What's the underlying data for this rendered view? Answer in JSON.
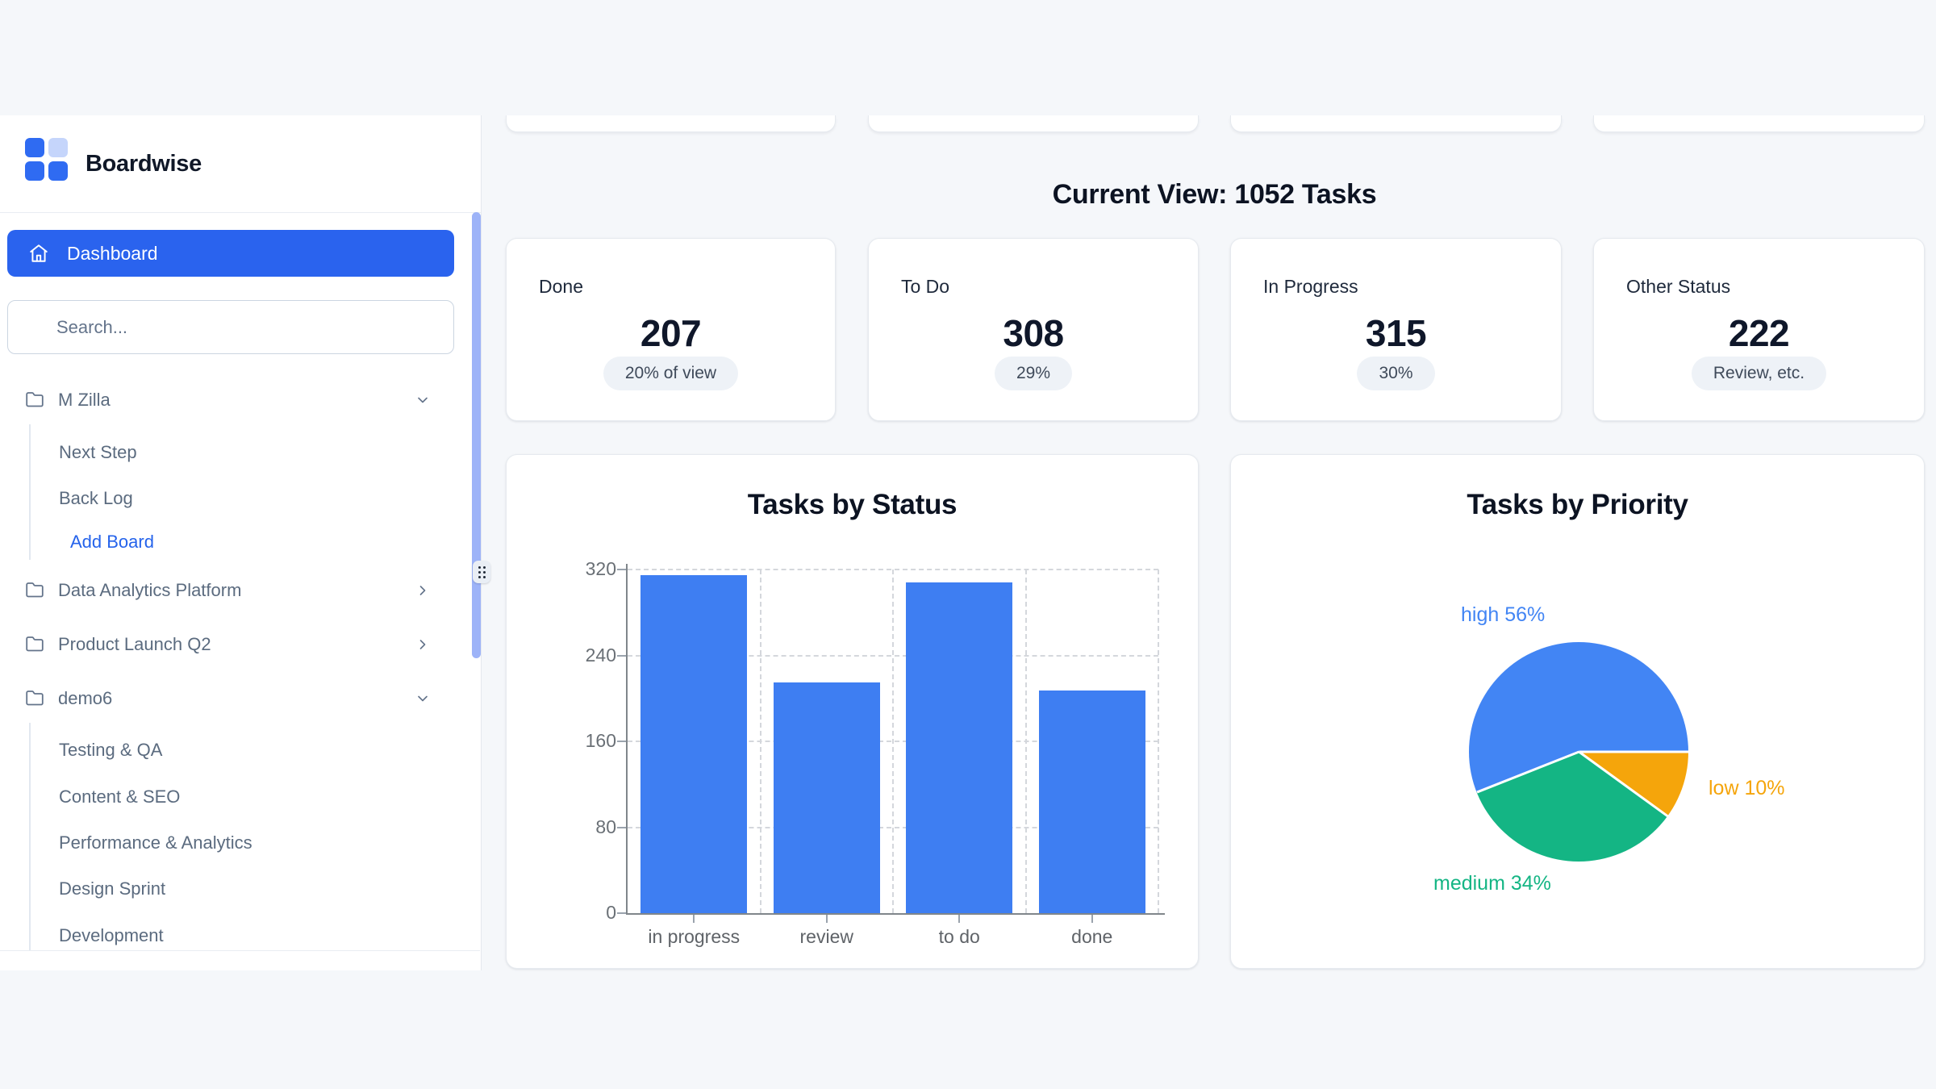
{
  "app": {
    "name": "Boardwise"
  },
  "colors": {
    "brand_blue": "#2a63ee",
    "link_blue": "#2563eb",
    "scrollbar": "#9db3f8",
    "bar_blue": "#3e7ef2",
    "pie_blue": "#4285f4",
    "pie_orange": "#f5a50b",
    "pie_green": "#14b584"
  },
  "sidebar": {
    "dashboard_label": "Dashboard",
    "search_placeholder": "Search...",
    "groups": [
      {
        "label": "M Zilla",
        "chevron": "down",
        "children": [
          "Next Step",
          "Back Log"
        ],
        "action": "Add Board"
      },
      {
        "label": "Data Analytics Platform",
        "chevron": "right"
      },
      {
        "label": "Product Launch Q2",
        "chevron": "right"
      },
      {
        "label": "demo6",
        "chevron": "down",
        "children": [
          "Testing & QA",
          "Content & SEO",
          "Performance & Analytics",
          "Design Sprint",
          "Development"
        ]
      }
    ]
  },
  "main": {
    "heading": "Current View: 1052 Tasks",
    "stats": [
      {
        "label": "Done",
        "value": "207",
        "badge": "20% of view"
      },
      {
        "label": "To Do",
        "value": "308",
        "badge": "29%"
      },
      {
        "label": "In Progress",
        "value": "315",
        "badge": "30%"
      },
      {
        "label": "Other Status",
        "value": "222",
        "badge": "Review, etc."
      }
    ]
  },
  "chart_data": [
    {
      "type": "bar",
      "title": "Tasks by Status",
      "categories": [
        "in progress",
        "review",
        "to do",
        "done"
      ],
      "values": [
        315,
        215,
        308,
        207
      ],
      "ylim": [
        0,
        320
      ],
      "yticks": [
        0,
        80,
        160,
        240,
        320
      ],
      "bar_color": "#3e7ef2",
      "grid": "dashed",
      "legend": "none"
    },
    {
      "type": "pie",
      "title": "Tasks by Priority",
      "start_angle_deg": 248.4,
      "slices": [
        {
          "name": "high",
          "pct": 56,
          "color": "#4285f4",
          "label": "high 56%"
        },
        {
          "name": "low",
          "pct": 10,
          "color": "#f5a50b",
          "label": "low 10%"
        },
        {
          "name": "medium",
          "pct": 34,
          "color": "#14b584",
          "label": "medium 34%"
        }
      ]
    }
  ]
}
